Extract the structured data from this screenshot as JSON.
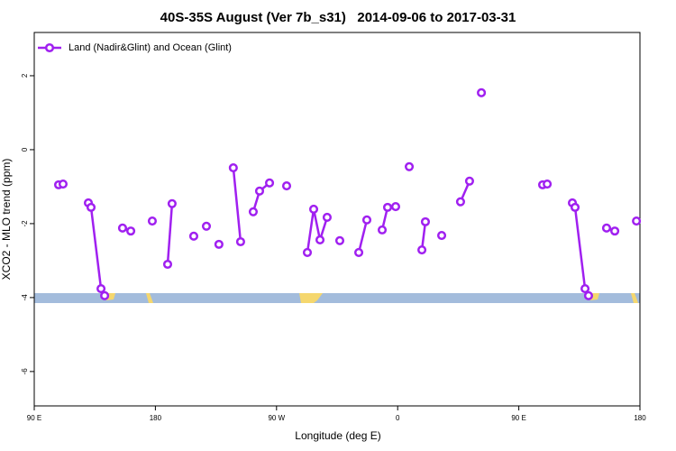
{
  "chart_data": {
    "type": "line",
    "title": "40S-35S August (Ver 7b_s31)   2014-09-06 to 2017-03-31",
    "x_label": "Longitude (deg E)",
    "y_label": "XCO2 - MLO trend (ppm)",
    "xlim": [
      90,
      540
    ],
    "ylim": [
      -6.93,
      3.17
    ],
    "xticks": [
      {
        "value": 90,
        "label": "90 E"
      },
      180,
      {
        "value": 270,
        "label": "90 W"
      },
      {
        "value": 360,
        "label": "0"
      },
      {
        "value": 450,
        "label": "90 E"
      },
      {
        "value": 540,
        "label": "180"
      }
    ],
    "yticks": [
      -6,
      -4,
      -2,
      0,
      2
    ],
    "legend": "top-left",
    "x": [
      108.1,
      111.4,
      null,
      130.2,
      132.2,
      139.6,
      142.3,
      null,
      155.6,
      161.7,
      null,
      177.7,
      null,
      189.1,
      192.4,
      null,
      208.5,
      null,
      217.9,
      null,
      227.2,
      null,
      237.9,
      243.3,
      null,
      252.7,
      257.4,
      264.8,
      null,
      277.5,
      null,
      292.9,
      297.6,
      302.3,
      307.6,
      null,
      317.0,
      null,
      331.1,
      337.1,
      null,
      348.5,
      352.5,
      358.5,
      null,
      368.6,
      null,
      378.0,
      380.6,
      null,
      392.7,
      null,
      406.7,
      413.4,
      null,
      422.2,
      null,
      467.7,
      471.1,
      null,
      489.8,
      491.8,
      499.2,
      501.8,
      null,
      515.2,
      521.3,
      null,
      537.4
    ],
    "series": [
      {
        "name": "Land (Nadir&Glint) and Ocean (Glint)",
        "color": "#a020f0",
        "values": [
          -0.95,
          -0.93,
          null,
          -1.44,
          -1.56,
          -3.76,
          -3.95,
          null,
          -2.12,
          -2.2,
          null,
          -1.93,
          null,
          -3.1,
          -1.46,
          null,
          -2.34,
          null,
          -2.07,
          null,
          -2.56,
          null,
          -0.49,
          -2.49,
          null,
          -1.68,
          -1.12,
          -0.9,
          null,
          -0.98,
          null,
          -2.78,
          -1.61,
          -2.44,
          -1.83,
          null,
          -2.46,
          null,
          -2.78,
          -1.9,
          null,
          -2.17,
          -1.56,
          -1.54,
          null,
          -0.46,
          null,
          -2.71,
          -1.95,
          null,
          -2.32,
          null,
          -1.41,
          -0.85,
          null,
          1.54,
          null,
          -0.95,
          -0.93,
          null,
          -1.44,
          -1.56,
          -3.76,
          -3.95,
          null,
          -2.12,
          -2.2,
          null,
          -1.93
        ]
      }
    ]
  }
}
